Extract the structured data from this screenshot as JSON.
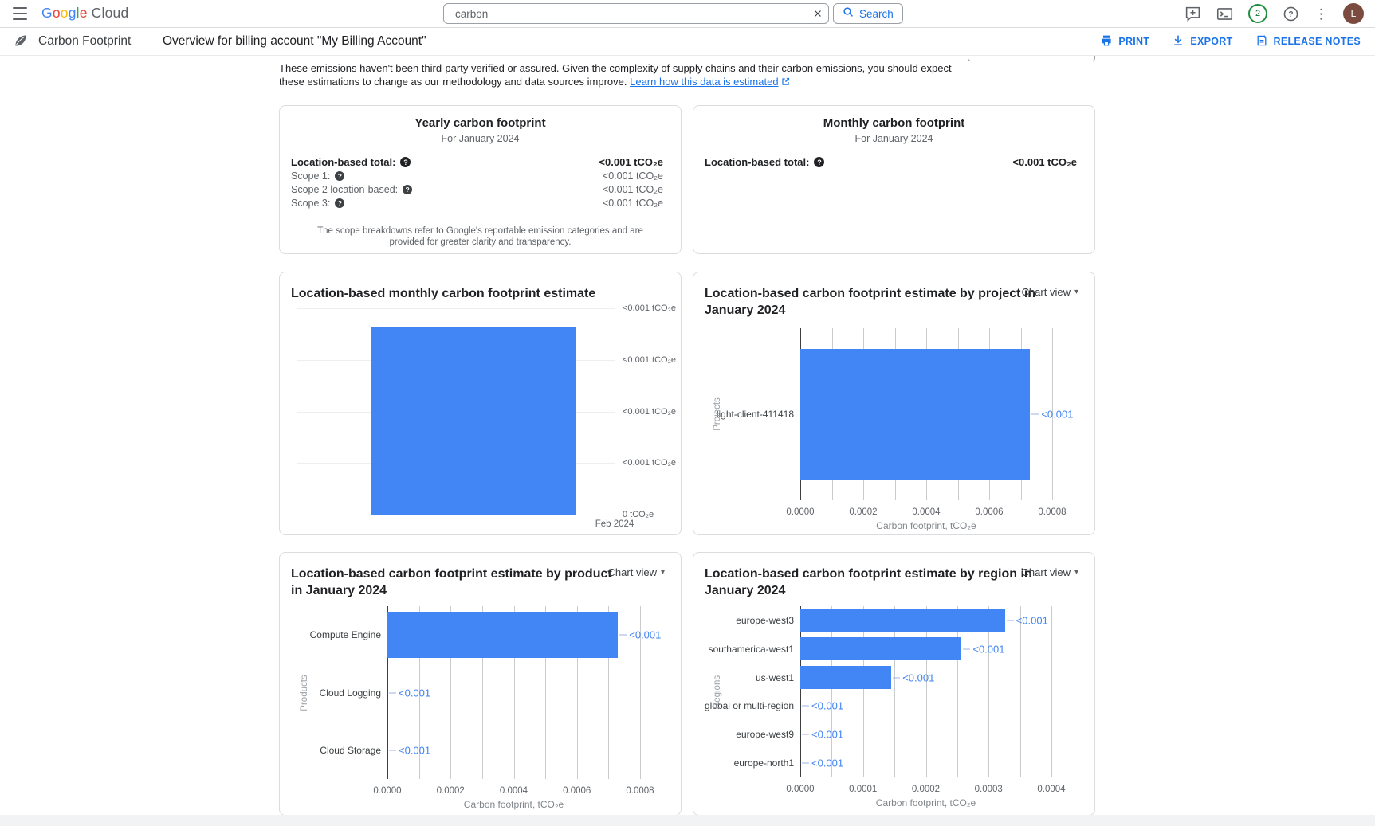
{
  "header": {
    "logo": {
      "text_primary": "Google",
      "text_secondary": "Cloud",
      "letter_colors": [
        "#4285F4",
        "#EA4335",
        "#FBBC05",
        "#4285F4",
        "#34A853",
        "#EA4335"
      ]
    },
    "search": {
      "value": "carbon",
      "button_label": "Search"
    },
    "notifications_count": "2",
    "avatar_letter": "L"
  },
  "toolbar": {
    "app_title": "Carbon Footprint",
    "page_title": "Overview for billing account \"My Billing Account\"",
    "actions": [
      {
        "label": "PRINT"
      },
      {
        "label": "EXPORT"
      },
      {
        "label": "RELEASE NOTES"
      }
    ]
  },
  "disclaimer": {
    "text": "These emissions haven't been third-party verified or assured. Given the complexity of supply chains and their carbon emissions, you should expect these estimations to change as our methodology and data sources improve.",
    "link": "Learn how this data is estimated"
  },
  "summary_cards": {
    "yearly": {
      "title": "Yearly carbon footprint",
      "subtitle": "For January 2024",
      "total_label": "Location-based total:",
      "total_value": "<0.001 tCO₂e",
      "rows": [
        {
          "label": "Scope 1:",
          "value": "<0.001 tCO₂e"
        },
        {
          "label": "Scope 2 location-based:",
          "value": "<0.001 tCO₂e"
        },
        {
          "label": "Scope 3:",
          "value": "<0.001 tCO₂e"
        }
      ],
      "footnote": "The scope breakdowns refer to Google's reportable emission categories and are provided for greater clarity and transparency."
    },
    "monthly": {
      "title": "Monthly carbon footprint",
      "subtitle": "For January 2024",
      "total_label": "Location-based total:",
      "total_value": "<0.001 tCO₂e"
    }
  },
  "chart_view_label": "Chart view",
  "colors": {
    "bar_blue": "#4285F4",
    "value_label_blue": "#4285F4",
    "link_blue": "#1a73e8"
  },
  "chart_data": [
    {
      "id": "monthly",
      "type": "bar",
      "orientation": "vertical",
      "title": "Location-based monthly carbon footprint estimate",
      "categories": [
        "Feb 2024"
      ],
      "values": [
        0.00073
      ],
      "ylim": [
        0,
        0.0008
      ],
      "y_tick_labels": [
        "<0.001 tCO₂e",
        "<0.001 tCO₂e",
        "<0.001 tCO₂e",
        "<0.001 tCO₂e",
        "0 tCO₂e"
      ],
      "grid": true,
      "bar_color": "#4285F4"
    },
    {
      "id": "project",
      "type": "bar",
      "orientation": "horizontal",
      "title": "Location-based carbon footprint estimate by project in January 2024",
      "categories": [
        "light-client-411418"
      ],
      "values": [
        0.00073
      ],
      "value_labels": [
        "<0.001"
      ],
      "xlim": [
        0,
        0.0008
      ],
      "x_ticks": [
        "0.0000",
        "0.0002",
        "0.0004",
        "0.0006",
        "0.0008"
      ],
      "xlabel": "Carbon footprint, tCO₂e",
      "ylabel": "Projects",
      "grid": true,
      "bar_color": "#4285F4",
      "value_color": "#4285F4"
    },
    {
      "id": "product",
      "type": "bar",
      "orientation": "horizontal",
      "title": "Location-based carbon footprint estimate by product in January 2024",
      "categories": [
        "Compute Engine",
        "Cloud Logging",
        "Cloud Storage"
      ],
      "values": [
        0.00073,
        0,
        0
      ],
      "value_labels": [
        "<0.001",
        "<0.001",
        "<0.001"
      ],
      "xlim": [
        0,
        0.0008
      ],
      "x_ticks": [
        "0.0000",
        "0.0002",
        "0.0004",
        "0.0006",
        "0.0008"
      ],
      "xlabel": "Carbon footprint, tCO₂e",
      "ylabel": "Products",
      "grid": true,
      "bar_color": "#4285F4",
      "value_color": "#4285F4"
    },
    {
      "id": "region",
      "type": "bar",
      "orientation": "horizontal",
      "title": "Location-based carbon footprint estimate by region in January 2024",
      "categories": [
        "europe-west3",
        "southamerica-west1",
        "us-west1",
        "global or multi-region",
        "europe-west9",
        "europe-north1"
      ],
      "values": [
        0.000326,
        0.000257,
        0.000145,
        0,
        0,
        0
      ],
      "value_labels": [
        "<0.001",
        "<0.001",
        "<0.001",
        "<0.001",
        "<0.001",
        "<0.001"
      ],
      "xlim": [
        0,
        0.0004
      ],
      "x_ticks": [
        "0.0000",
        "0.0001",
        "0.0002",
        "0.0003",
        "0.0004"
      ],
      "xlabel": "Carbon footprint, tCO₂e",
      "ylabel": "Regions",
      "grid": true,
      "bar_color": "#4285F4",
      "value_color": "#4285F4"
    }
  ]
}
